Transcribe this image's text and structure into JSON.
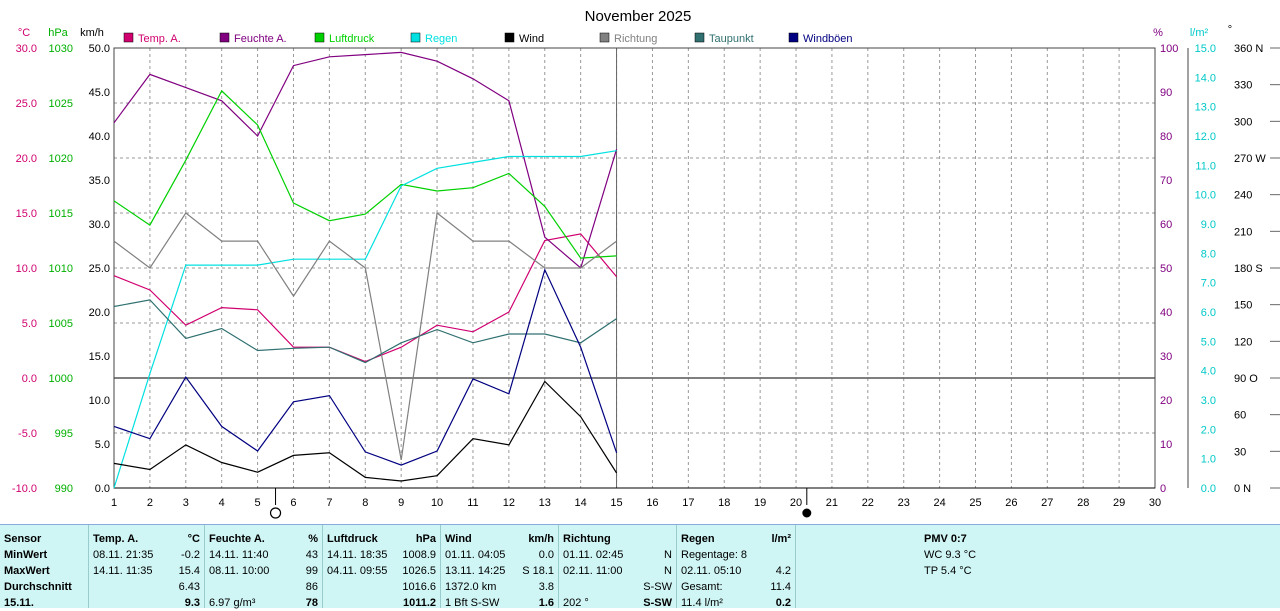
{
  "title": "November 2025",
  "axes": {
    "temp": {
      "unit": "°C",
      "ticks": [
        "30.0",
        "25.0",
        "20.0",
        "15.0",
        "10.0",
        "5.0",
        "0.0",
        "-5.0",
        "-10.0"
      ]
    },
    "pressure": {
      "unit": "hPa",
      "ticks": [
        "1030",
        "1025",
        "1020",
        "1015",
        "1010",
        "1005",
        "1000",
        "995",
        "990"
      ]
    },
    "wind": {
      "unit": "km/h",
      "ticks": [
        "50.0",
        "45.0",
        "40.0",
        "35.0",
        "30.0",
        "25.0",
        "20.0",
        "15.0",
        "10.0",
        "5.0",
        "0.0"
      ]
    },
    "humidity": {
      "unit": "%",
      "ticks": [
        "100",
        "90",
        "80",
        "70",
        "60",
        "50",
        "40",
        "30",
        "20",
        "10",
        "0"
      ]
    },
    "rain": {
      "unit": "l/m²",
      "ticks": [
        "15.0",
        "14.0",
        "13.0",
        "12.0",
        "11.0",
        "10.0",
        "9.0",
        "8.0",
        "7.0",
        "6.0",
        "5.0",
        "4.0",
        "3.0",
        "2.0",
        "1.0",
        "0.0"
      ]
    },
    "direction": {
      "unit": "°",
      "ticks": [
        "360 N",
        "330",
        "300",
        "270 W",
        "240",
        "210",
        "180 S",
        "150",
        "120",
        "90 O",
        "60",
        "30",
        "0 N"
      ]
    },
    "x_ticks": [
      "1",
      "2",
      "3",
      "4",
      "5",
      "6",
      "7",
      "8",
      "9",
      "10",
      "11",
      "12",
      "13",
      "14",
      "15",
      "16",
      "17",
      "18",
      "19",
      "20",
      "21",
      "22",
      "23",
      "24",
      "25",
      "26",
      "27",
      "28",
      "29",
      "30"
    ]
  },
  "legend": [
    {
      "label": "Temp. A.",
      "color": "#d0006f"
    },
    {
      "label": "Feuchte A.",
      "color": "#800080"
    },
    {
      "label": "Luftdruck",
      "color": "#00d000"
    },
    {
      "label": "Regen",
      "color": "#00e0e0"
    },
    {
      "label": "Wind",
      "color": "#000000"
    },
    {
      "label": "Richtung",
      "color": "#808080"
    },
    {
      "label": "Taupunkt",
      "color": "#307070"
    },
    {
      "label": "Windböen",
      "color": "#000080"
    }
  ],
  "chart_data": {
    "type": "line",
    "title": "November 2025",
    "x": [
      1,
      2,
      3,
      4,
      5,
      6,
      7,
      8,
      9,
      10,
      11,
      12,
      13,
      14,
      15
    ],
    "xlim": [
      1,
      30
    ],
    "series": [
      {
        "name": "Temp. A.",
        "axis": "temp",
        "unit": "°C",
        "color": "#d0006f",
        "values": [
          9.3,
          8.0,
          4.8,
          6.4,
          6.2,
          2.8,
          2.8,
          1.5,
          2.8,
          4.8,
          4.2,
          6.0,
          12.5,
          13.1,
          9.2
        ]
      },
      {
        "name": "Feuchte A.",
        "axis": "humidity",
        "unit": "%",
        "color": "#800080",
        "values": [
          83,
          94,
          91,
          88,
          80,
          96,
          98,
          98.5,
          99,
          97,
          93,
          88,
          57,
          50,
          77
        ]
      },
      {
        "name": "Luftdruck",
        "axis": "pressure",
        "unit": "hPa",
        "color": "#00d000",
        "values": [
          1016.1,
          1013.9,
          1019.8,
          1026.1,
          1023.0,
          1015.9,
          1014.3,
          1014.9,
          1017.6,
          1017.0,
          1017.3,
          1018.6,
          1015.6,
          1010.9,
          1011.1
        ]
      },
      {
        "name": "Regen",
        "axis": "rain",
        "unit": "l/m²",
        "color": "#00e0e0",
        "values": [
          0.0,
          3.9,
          7.6,
          7.6,
          7.6,
          7.8,
          7.8,
          7.8,
          10.3,
          10.9,
          11.1,
          11.3,
          11.3,
          11.3,
          11.5
        ]
      },
      {
        "name": "Wind",
        "axis": "wind",
        "unit": "km/h",
        "color": "#000000",
        "values": [
          2.8,
          2.1,
          4.9,
          2.9,
          1.8,
          3.7,
          4.0,
          1.2,
          0.8,
          1.4,
          5.6,
          4.9,
          12.1,
          8.1,
          1.7
        ]
      },
      {
        "name": "Richtung",
        "axis": "direction",
        "unit": "°",
        "color": "#808080",
        "values": [
          202,
          180,
          225,
          202,
          202,
          157,
          202,
          180,
          23,
          225,
          202,
          202,
          180,
          180,
          202
        ]
      },
      {
        "name": "Taupunkt",
        "axis": "temp",
        "unit": "°C",
        "color": "#307070",
        "values": [
          6.5,
          7.1,
          3.6,
          4.5,
          2.5,
          2.7,
          2.8,
          1.4,
          3.2,
          4.4,
          3.2,
          4.0,
          4.0,
          3.2,
          5.4
        ]
      },
      {
        "name": "Windböen",
        "axis": "wind",
        "unit": "km/h",
        "color": "#000080",
        "values": [
          7.0,
          5.6,
          12.6,
          7.0,
          4.2,
          9.8,
          10.5,
          4.1,
          2.6,
          4.2,
          12.4,
          10.7,
          24.8,
          16.0,
          4.0
        ]
      }
    ],
    "axis_ranges": {
      "temp": [
        -10,
        30
      ],
      "pressure": [
        990,
        1030
      ],
      "wind": [
        0,
        50
      ],
      "humidity": [
        0,
        100
      ],
      "rain": [
        0,
        15
      ],
      "direction": [
        0,
        360
      ]
    },
    "annotations": [
      "○ at day 5.5",
      "◐ at day 20.3"
    ]
  },
  "table": {
    "row_labels": [
      "Sensor",
      "MinWert",
      "MaxWert",
      "Durchschnitt",
      "15.11."
    ],
    "temp": {
      "head": "Temp. A.",
      "unit": "°C",
      "min_time": "08.11.  21:35",
      "min": "-0.2",
      "max_time": "14.11.  11:35",
      "max": "15.4",
      "avg": "6.43",
      "today": "9.3"
    },
    "humidity": {
      "head": "Feuchte A.",
      "unit": "%",
      "min_time": "14.11.  11:40",
      "min": "43",
      "max_time": "08.11.  10:00",
      "max": "99",
      "avg": "86",
      "today_extra": "6.97 g/m³",
      "today": "78"
    },
    "pressure": {
      "head": "Luftdruck",
      "unit": "hPa",
      "min_time": "14.11.  18:35",
      "min": "1008.9",
      "max_time": "04.11.  09:55",
      "max": "1026.5",
      "avg": "1016.6",
      "today": "1011.2"
    },
    "wind": {
      "head": "Wind",
      "unit": "km/h",
      "min_time": "01.11.  04:05",
      "min": "0.0",
      "max_time": "13.11.  14:25",
      "max": "S 18.1",
      "avg_extra": "1372.0 km",
      "avg": "3.8",
      "today_extra": "1 Bft S-SW",
      "today": "1.6"
    },
    "direction": {
      "head": "Richtung",
      "min_time": "01.11.  02:45",
      "min": "N",
      "max_time": "02.11.  11:00",
      "max": "N",
      "avg": "S-SW",
      "today_extra": "202 °",
      "today": "S-SW"
    },
    "rain": {
      "head": "Regen",
      "unit": "l/m²",
      "days": "Regentage: 8",
      "max_time": "02.11.  05:10",
      "max": "4.2",
      "total_label": "Gesamt:",
      "total": "11.4",
      "today_extra": "11.4 l/m²",
      "today": "0.2"
    },
    "pmv": {
      "title": "PMV 0:7",
      "wc": "WC 9.3 °C",
      "tp": "TP 5.4 °C"
    }
  }
}
